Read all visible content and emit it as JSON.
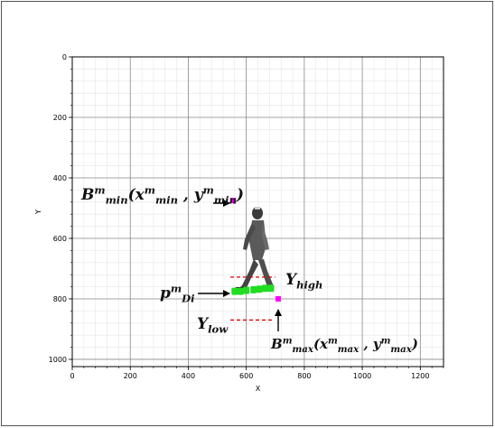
{
  "chart_data": {
    "type": "scatter",
    "xlabel": "X",
    "ylabel": "Y",
    "xlim": [
      0,
      1280
    ],
    "ylim": [
      1024,
      0
    ],
    "y_inverted": true,
    "grid": true,
    "minor_grid": true,
    "xticks": [
      0,
      200,
      400,
      600,
      800,
      1000,
      1200
    ],
    "yticks": [
      0,
      200,
      400,
      600,
      800,
      1000
    ],
    "xtick_labels": [
      "0",
      "200",
      "400",
      "600",
      "800",
      "1000",
      "1200"
    ],
    "ytick_labels": [
      "0",
      "200",
      "400",
      "600",
      "800",
      "1000"
    ],
    "bbox_corners": [
      {
        "x": 555,
        "y": 475,
        "color": "#ff00ff"
      },
      {
        "x": 710,
        "y": 800,
        "color": "#ff00ff"
      }
    ],
    "foot_points": [
      {
        "x": 560,
        "y": 775
      },
      {
        "x": 580,
        "y": 775
      },
      {
        "x": 600,
        "y": 772
      },
      {
        "x": 625,
        "y": 770
      },
      {
        "x": 645,
        "y": 768
      },
      {
        "x": 665,
        "y": 765
      },
      {
        "x": 685,
        "y": 765
      }
    ],
    "foot_color": "#22dd22",
    "reference_lines": [
      {
        "name": "Y_high",
        "y": 728,
        "x0": 545,
        "x1": 700,
        "color": "#dd0000",
        "style": "dashed"
      },
      {
        "name": "Y_low",
        "y": 870,
        "x0": 545,
        "x1": 690,
        "color": "#dd0000",
        "style": "dashed"
      }
    ],
    "annotations": [
      {
        "id": "bmin",
        "base": "B",
        "sup": "m",
        "parts": [
          {
            "t": "B"
          },
          {
            "t": "m",
            "sup": true
          },
          {
            "t": "min",
            "sub": true
          },
          {
            "t": "(x"
          },
          {
            "t": "m",
            "sup": true
          },
          {
            "t": "min",
            "sub": true
          },
          {
            "t": " ,  y"
          },
          {
            "t": "m",
            "sup": true
          },
          {
            "t": "min",
            "sub": true
          },
          {
            "t": ")"
          }
        ]
      },
      {
        "id": "bmax",
        "parts": [
          {
            "t": "B"
          },
          {
            "t": "m",
            "sup": true
          },
          {
            "t": "max",
            "sub": true
          },
          {
            "t": "(x"
          },
          {
            "t": "m",
            "sup": true
          },
          {
            "t": "max",
            "sub": true
          },
          {
            "t": " ,  y"
          },
          {
            "t": "m",
            "sup": true
          },
          {
            "t": "max",
            "sub": true
          },
          {
            "t": ")"
          }
        ]
      },
      {
        "id": "pdi",
        "parts": [
          {
            "t": "p"
          },
          {
            "t": "m",
            "sup": true
          },
          {
            "t": "Di",
            "sub": true
          }
        ]
      },
      {
        "id": "yhigh",
        "parts": [
          {
            "t": "Y"
          },
          {
            "t": "high",
            "sub": true
          }
        ]
      },
      {
        "id": "ylow",
        "parts": [
          {
            "t": "Y"
          },
          {
            "t": "low",
            "sub": true
          }
        ]
      }
    ],
    "figure": "walking-person-silhouette"
  }
}
